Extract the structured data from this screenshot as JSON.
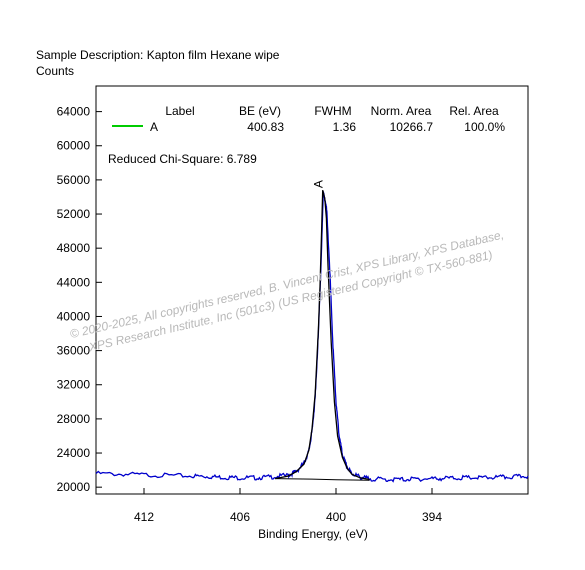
{
  "chart_data": {
    "type": "line",
    "header": "Sample Description:  Kapton film Hexane wipe",
    "ylabel": "Counts",
    "xlabel": "Binding Energy, (eV)",
    "xlim": [
      415,
      388
    ],
    "ylim": [
      19200,
      67000
    ],
    "x_ticks": [
      412,
      406,
      400,
      394
    ],
    "y_ticks": [
      20000,
      24000,
      28000,
      32000,
      36000,
      40000,
      44000,
      48000,
      52000,
      56000,
      60000,
      64000
    ],
    "legend": {
      "headers": [
        "Label",
        "BE (eV)",
        "FWHM",
        "Norm. Area",
        "Rel. Area"
      ],
      "rows": [
        {
          "label": "A",
          "be": "400.83",
          "fwhm": "1.36",
          "norm_area": "10266.7",
          "rel_area": "100.0%",
          "color": "#00cc00"
        }
      ]
    },
    "chi_square": "Reduced Chi-Square: 6.789",
    "peak_label": "A",
    "series": [
      {
        "role": "measured",
        "color": "#0000cc",
        "x": [
          415.0,
          413.0,
          411.0,
          409.0,
          408.0,
          407.0,
          406.0,
          405.0,
          404.0,
          403.0,
          402.5,
          402.0,
          401.7,
          401.5,
          401.3,
          401.1,
          400.9,
          400.8,
          400.6,
          400.4,
          400.2,
          400.0,
          399.8,
          399.6,
          399.3,
          399.0,
          398.5,
          398.0,
          397.0,
          396.0,
          395.0,
          394.0,
          393.0,
          392.0,
          391.0,
          390.0,
          389.0,
          388.0
        ],
        "y": [
          21600,
          21500,
          21400,
          21300,
          21250,
          21150,
          21100,
          21100,
          21200,
          21400,
          21800,
          22800,
          24200,
          26500,
          30500,
          38000,
          48000,
          54500,
          53000,
          46000,
          37000,
          30000,
          26000,
          23800,
          22300,
          21600,
          21200,
          21000,
          20900,
          20900,
          20950,
          21000,
          21050,
          21100,
          21100,
          21150,
          21200,
          21300
        ]
      },
      {
        "role": "peak-A-envelope",
        "color": "#000000",
        "x": [
          403.8,
          403.0,
          402.5,
          402.0,
          401.7,
          401.5,
          401.3,
          401.1,
          401.0,
          400.9,
          400.83,
          400.7,
          400.6,
          400.5,
          400.3,
          400.1,
          399.9,
          399.6,
          399.3,
          399.0,
          398.5,
          397.9
        ],
        "y": [
          21000,
          21300,
          21800,
          22700,
          24300,
          26800,
          31000,
          38500,
          43500,
          50000,
          54800,
          53800,
          51500,
          46000,
          37000,
          30000,
          26000,
          23500,
          22200,
          21500,
          21100,
          20900
        ]
      },
      {
        "role": "background",
        "color": "#000000",
        "x": [
          403.8,
          401.5,
          400.0,
          397.9
        ],
        "y": [
          21000,
          20950,
          20880,
          20800
        ]
      }
    ],
    "watermark": [
      "© 2020-2025,  All copyrights reserved,   B. Vincent Crist,  XPS Library, XPS Database,",
      "XPS Research Institute, Inc (501c3)   (US Registered Copyright © TX-560-881)"
    ]
  }
}
